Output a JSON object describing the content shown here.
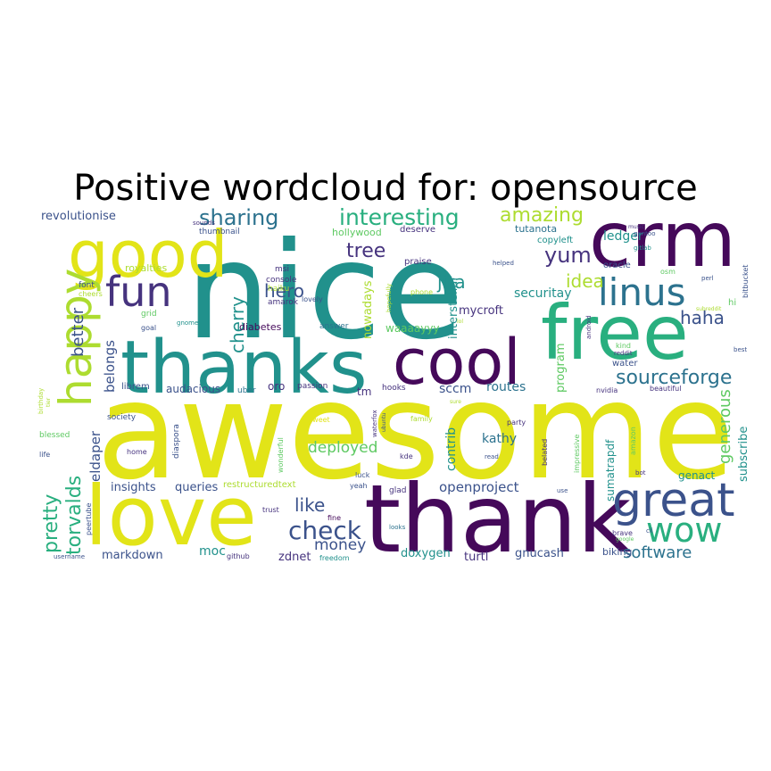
{
  "title": "Positive wordcloud for: opensource",
  "palette": {
    "dark-purple": "#45095a",
    "purple": "#46337e",
    "indigo": "#3b528b",
    "blue": "#2c728e",
    "teal": "#21918c",
    "green-teal": "#29af7f",
    "green": "#5ec962",
    "lime": "#addc30",
    "yellow": "#e2e418"
  },
  "words": [
    {
      "text": "awesome",
      "color": "yellow"
    },
    {
      "text": "nice",
      "color": "teal"
    },
    {
      "text": "thank",
      "color": "dark-purple"
    },
    {
      "text": "love",
      "color": "yellow"
    },
    {
      "text": "thanks",
      "color": "teal"
    },
    {
      "text": "free",
      "color": "green-teal"
    },
    {
      "text": "cool",
      "color": "dark-purple"
    },
    {
      "text": "crm",
      "color": "dark-purple"
    },
    {
      "text": "good",
      "color": "yellow"
    },
    {
      "text": "great",
      "color": "indigo"
    },
    {
      "text": "happy",
      "color": "lime"
    },
    {
      "text": "fun",
      "color": "purple"
    },
    {
      "text": "linus",
      "color": "blue"
    },
    {
      "text": "wow",
      "color": "green-teal"
    },
    {
      "text": "sharing",
      "color": "blue"
    },
    {
      "text": "interesting",
      "color": "green-teal"
    },
    {
      "text": "amazing",
      "color": "lime"
    },
    {
      "text": "check",
      "color": "indigo"
    },
    {
      "text": "yum",
      "color": "purple"
    },
    {
      "text": "torvalds",
      "color": "green-teal"
    },
    {
      "text": "pretty",
      "color": "green-teal"
    },
    {
      "text": "sourceforge",
      "color": "blue"
    },
    {
      "text": "tree",
      "color": "purple"
    },
    {
      "text": "hero",
      "color": "indigo"
    },
    {
      "text": "cherry",
      "color": "teal"
    },
    {
      "text": "jira",
      "color": "teal"
    },
    {
      "text": "better",
      "color": "indigo"
    },
    {
      "text": "haha",
      "color": "indigo"
    },
    {
      "text": "idea",
      "color": "lime"
    },
    {
      "text": "like",
      "color": "indigo"
    },
    {
      "text": "generous",
      "color": "green"
    },
    {
      "text": "money",
      "color": "indigo"
    },
    {
      "text": "software",
      "color": "blue"
    },
    {
      "text": "deployed",
      "color": "green"
    },
    {
      "text": "belongs",
      "color": "indigo"
    },
    {
      "text": "eldaper",
      "color": "indigo"
    },
    {
      "text": "openproject",
      "color": "indigo"
    },
    {
      "text": "ledger",
      "color": "teal"
    },
    {
      "text": "securitay",
      "color": "teal"
    },
    {
      "text": "sccm",
      "color": "indigo"
    },
    {
      "text": "routes",
      "color": "blue"
    },
    {
      "text": "kathy",
      "color": "blue"
    },
    {
      "text": "contrib",
      "color": "teal"
    },
    {
      "text": "mycroft",
      "color": "purple"
    },
    {
      "text": "interstellar",
      "color": "teal"
    },
    {
      "text": "nowadays",
      "color": "lime"
    },
    {
      "text": "program",
      "color": "green"
    },
    {
      "text": "subscribe",
      "color": "teal"
    },
    {
      "text": "revolutionise",
      "color": "indigo"
    },
    {
      "text": "markdown",
      "color": "indigo"
    },
    {
      "text": "queries",
      "color": "indigo"
    },
    {
      "text": "insights",
      "color": "indigo"
    },
    {
      "text": "zdnet",
      "color": "purple"
    },
    {
      "text": "moc",
      "color": "teal"
    },
    {
      "text": "doxygen",
      "color": "teal"
    },
    {
      "text": "turtl",
      "color": "purple"
    },
    {
      "text": "gnucash",
      "color": "indigo"
    },
    {
      "text": "biking",
      "color": "indigo"
    },
    {
      "text": "sumatrapdf",
      "color": "teal"
    },
    {
      "text": "genact",
      "color": "teal"
    },
    {
      "text": "waaaayyy",
      "color": "green"
    },
    {
      "text": "tm",
      "color": "purple"
    },
    {
      "text": "oro",
      "color": "purple"
    },
    {
      "text": "audacious",
      "color": "indigo"
    },
    {
      "text": "diabetes",
      "color": "dark-purple"
    },
    {
      "text": "hollywood",
      "color": "green"
    },
    {
      "text": "tutanota",
      "color": "blue"
    },
    {
      "text": "copyleft",
      "color": "teal"
    },
    {
      "text": "praise",
      "color": "purple"
    },
    {
      "text": "deserve",
      "color": "purple"
    },
    {
      "text": "royalties",
      "color": "lime"
    },
    {
      "text": "librem",
      "color": "indigo"
    },
    {
      "text": "hi",
      "color": "green"
    },
    {
      "text": "oracle",
      "color": "indigo"
    },
    {
      "text": "water",
      "color": "indigo"
    },
    {
      "text": "routes2",
      "color": "blue"
    },
    {
      "text": "restructuredtext",
      "color": "lime"
    },
    {
      "text": "thumbnail",
      "color": "indigo"
    },
    {
      "text": "console",
      "color": "purple"
    },
    {
      "text": "haiku",
      "color": "lime"
    },
    {
      "text": "amarok",
      "color": "purple"
    },
    {
      "text": "msi",
      "color": "purple"
    },
    {
      "text": "lovely",
      "color": "indigo"
    },
    {
      "text": "answer",
      "color": "blue"
    },
    {
      "text": "passion",
      "color": "purple"
    },
    {
      "text": "hooks",
      "color": "purple"
    },
    {
      "text": "uber",
      "color": "blue"
    },
    {
      "text": "grid",
      "color": "green"
    },
    {
      "text": "goal",
      "color": "indigo"
    },
    {
      "text": "gnome",
      "color": "teal"
    },
    {
      "text": "font",
      "color": "indigo"
    },
    {
      "text": "cheers",
      "color": "lime"
    },
    {
      "text": "society",
      "color": "indigo"
    },
    {
      "text": "blessed",
      "color": "green"
    },
    {
      "text": "life",
      "color": "indigo"
    },
    {
      "text": "home",
      "color": "purple"
    },
    {
      "text": "diaspora",
      "color": "indigo"
    },
    {
      "text": "trust",
      "color": "purple"
    },
    {
      "text": "sounds",
      "color": "purple"
    },
    {
      "text": "wonderful",
      "color": "green"
    },
    {
      "text": "peertube",
      "color": "indigo"
    },
    {
      "text": "username",
      "color": "indigo"
    },
    {
      "text": "github",
      "color": "purple"
    },
    {
      "text": "freedom",
      "color": "teal"
    },
    {
      "text": "fine",
      "color": "dark-purple"
    },
    {
      "text": "yeah",
      "color": "indigo"
    },
    {
      "text": "luck",
      "color": "indigo"
    },
    {
      "text": "kde",
      "color": "purple"
    },
    {
      "text": "glad",
      "color": "purple"
    },
    {
      "text": "looks",
      "color": "blue"
    },
    {
      "text": "read",
      "color": "indigo"
    },
    {
      "text": "party",
      "color": "purple"
    },
    {
      "text": "family",
      "color": "lime"
    },
    {
      "text": "sweet",
      "color": "yellow"
    },
    {
      "text": "belated",
      "color": "purple"
    },
    {
      "text": "impressive",
      "color": "green"
    },
    {
      "text": "amazon",
      "color": "green"
    },
    {
      "text": "nvidia",
      "color": "purple"
    },
    {
      "text": "beautiful",
      "color": "purple"
    },
    {
      "text": "kind",
      "color": "green"
    },
    {
      "text": "reddit",
      "color": "purple"
    },
    {
      "text": "best",
      "color": "indigo"
    },
    {
      "text": "brave",
      "color": "purple"
    },
    {
      "text": "cli",
      "color": "indigo"
    },
    {
      "text": "google",
      "color": "green"
    },
    {
      "text": "bot",
      "color": "purple"
    },
    {
      "text": "use",
      "color": "indigo"
    },
    {
      "text": "music",
      "color": "purple"
    },
    {
      "text": "gentoo",
      "color": "indigo"
    },
    {
      "text": "gitlab",
      "color": "teal"
    },
    {
      "text": "osm",
      "color": "green"
    },
    {
      "text": "perl",
      "color": "indigo"
    },
    {
      "text": "bitbucket",
      "color": "indigo"
    },
    {
      "text": "subreddit",
      "color": "lime"
    },
    {
      "text": "tier",
      "color": "lime"
    },
    {
      "text": "birthday",
      "color": "lime"
    },
    {
      "text": "sure",
      "color": "lime"
    },
    {
      "text": "lol",
      "color": "lime"
    },
    {
      "text": "ubuntu",
      "color": "indigo"
    },
    {
      "text": "waterfox",
      "color": "purple"
    },
    {
      "text": "hopefully",
      "color": "lime"
    },
    {
      "text": "android",
      "color": "purple"
    },
    {
      "text": "phone",
      "color": "lime"
    },
    {
      "text": "helped",
      "color": "indigo"
    }
  ]
}
